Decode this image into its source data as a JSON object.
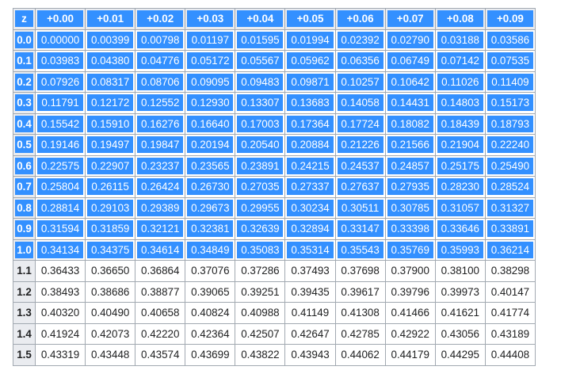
{
  "table": {
    "header": [
      "z",
      "+0.00",
      "+0.01",
      "+0.02",
      "+0.03",
      "+0.04",
      "+0.05",
      "+0.06",
      "+0.07",
      "+0.08",
      "+0.09"
    ],
    "rows": [
      [
        "0.0",
        "0.00000",
        "0.00399",
        "0.00798",
        "0.01197",
        "0.01595",
        "0.01994",
        "0.02392",
        "0.02790",
        "0.03188",
        "0.03586"
      ],
      [
        "0.1",
        "0.03983",
        "0.04380",
        "0.04776",
        "0.05172",
        "0.05567",
        "0.05962",
        "0.06356",
        "0.06749",
        "0.07142",
        "0.07535"
      ],
      [
        "0.2",
        "0.07926",
        "0.08317",
        "0.08706",
        "0.09095",
        "0.09483",
        "0.09871",
        "0.10257",
        "0.10642",
        "0.11026",
        "0.11409"
      ],
      [
        "0.3",
        "0.11791",
        "0.12172",
        "0.12552",
        "0.12930",
        "0.13307",
        "0.13683",
        "0.14058",
        "0.14431",
        "0.14803",
        "0.15173"
      ],
      [
        "0.4",
        "0.15542",
        "0.15910",
        "0.16276",
        "0.16640",
        "0.17003",
        "0.17364",
        "0.17724",
        "0.18082",
        "0.18439",
        "0.18793"
      ],
      [
        "0.5",
        "0.19146",
        "0.19497",
        "0.19847",
        "0.20194",
        "0.20540",
        "0.20884",
        "0.21226",
        "0.21566",
        "0.21904",
        "0.22240"
      ],
      [
        "0.6",
        "0.22575",
        "0.22907",
        "0.23237",
        "0.23565",
        "0.23891",
        "0.24215",
        "0.24537",
        "0.24857",
        "0.25175",
        "0.25490"
      ],
      [
        "0.7",
        "0.25804",
        "0.26115",
        "0.26424",
        "0.26730",
        "0.27035",
        "0.27337",
        "0.27637",
        "0.27935",
        "0.28230",
        "0.28524"
      ],
      [
        "0.8",
        "0.28814",
        "0.29103",
        "0.29389",
        "0.29673",
        "0.29955",
        "0.30234",
        "0.30511",
        "0.30785",
        "0.31057",
        "0.31327"
      ],
      [
        "0.9",
        "0.31594",
        "0.31859",
        "0.32121",
        "0.32381",
        "0.32639",
        "0.32894",
        "0.33147",
        "0.33398",
        "0.33646",
        "0.33891"
      ],
      [
        "1.0",
        "0.34134",
        "0.34375",
        "0.34614",
        "0.34849",
        "0.35083",
        "0.35314",
        "0.35543",
        "0.35769",
        "0.35993",
        "0.36214"
      ],
      [
        "1.1",
        "0.36433",
        "0.36650",
        "0.36864",
        "0.37076",
        "0.37286",
        "0.37493",
        "0.37698",
        "0.37900",
        "0.38100",
        "0.38298"
      ],
      [
        "1.2",
        "0.38493",
        "0.38686",
        "0.38877",
        "0.39065",
        "0.39251",
        "0.39435",
        "0.39617",
        "0.39796",
        "0.39973",
        "0.40147"
      ],
      [
        "1.3",
        "0.40320",
        "0.40490",
        "0.40658",
        "0.40824",
        "0.40988",
        "0.41149",
        "0.41308",
        "0.41466",
        "0.41621",
        "0.41774"
      ],
      [
        "1.4",
        "0.41924",
        "0.42073",
        "0.42220",
        "0.42364",
        "0.42507",
        "0.42647",
        "0.42785",
        "0.42922",
        "0.43056",
        "0.43189"
      ],
      [
        "1.5",
        "0.43319",
        "0.43448",
        "0.43574",
        "0.43699",
        "0.43822",
        "0.43943",
        "0.44062",
        "0.44179",
        "0.44295",
        "0.44408"
      ]
    ]
  }
}
